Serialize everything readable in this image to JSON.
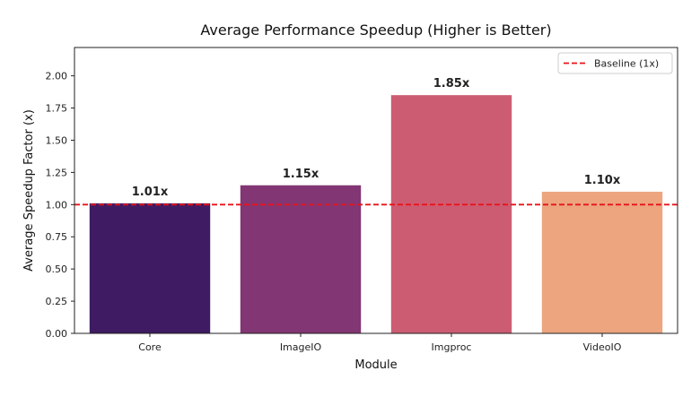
{
  "chart_data": {
    "type": "bar",
    "title": "Average Performance Speedup (Higher is Better)",
    "xlabel": "Module",
    "ylabel": "Average Speedup Factor (x)",
    "ylim": [
      0,
      2.22
    ],
    "yticks": [
      0.0,
      0.25,
      0.5,
      0.75,
      1.0,
      1.25,
      1.5,
      1.75,
      2.0
    ],
    "ytick_labels": [
      "0.00",
      "0.25",
      "0.50",
      "0.75",
      "1.00",
      "1.25",
      "1.50",
      "1.75",
      "2.00"
    ],
    "categories": [
      "Core",
      "ImageIO",
      "Imgproc",
      "VideoIO"
    ],
    "values": [
      1.01,
      1.15,
      1.85,
      1.1
    ],
    "data_labels": [
      "1.01x",
      "1.15x",
      "1.85x",
      "1.10x"
    ],
    "colors": [
      "#3e1b62",
      "#823673",
      "#cc5c72",
      "#eca57f"
    ],
    "baseline": {
      "value": 1.0,
      "label": "Baseline (1x)",
      "color": "#e8131a",
      "style": "dashed"
    },
    "legend_position": "top-right",
    "grid": false
  }
}
